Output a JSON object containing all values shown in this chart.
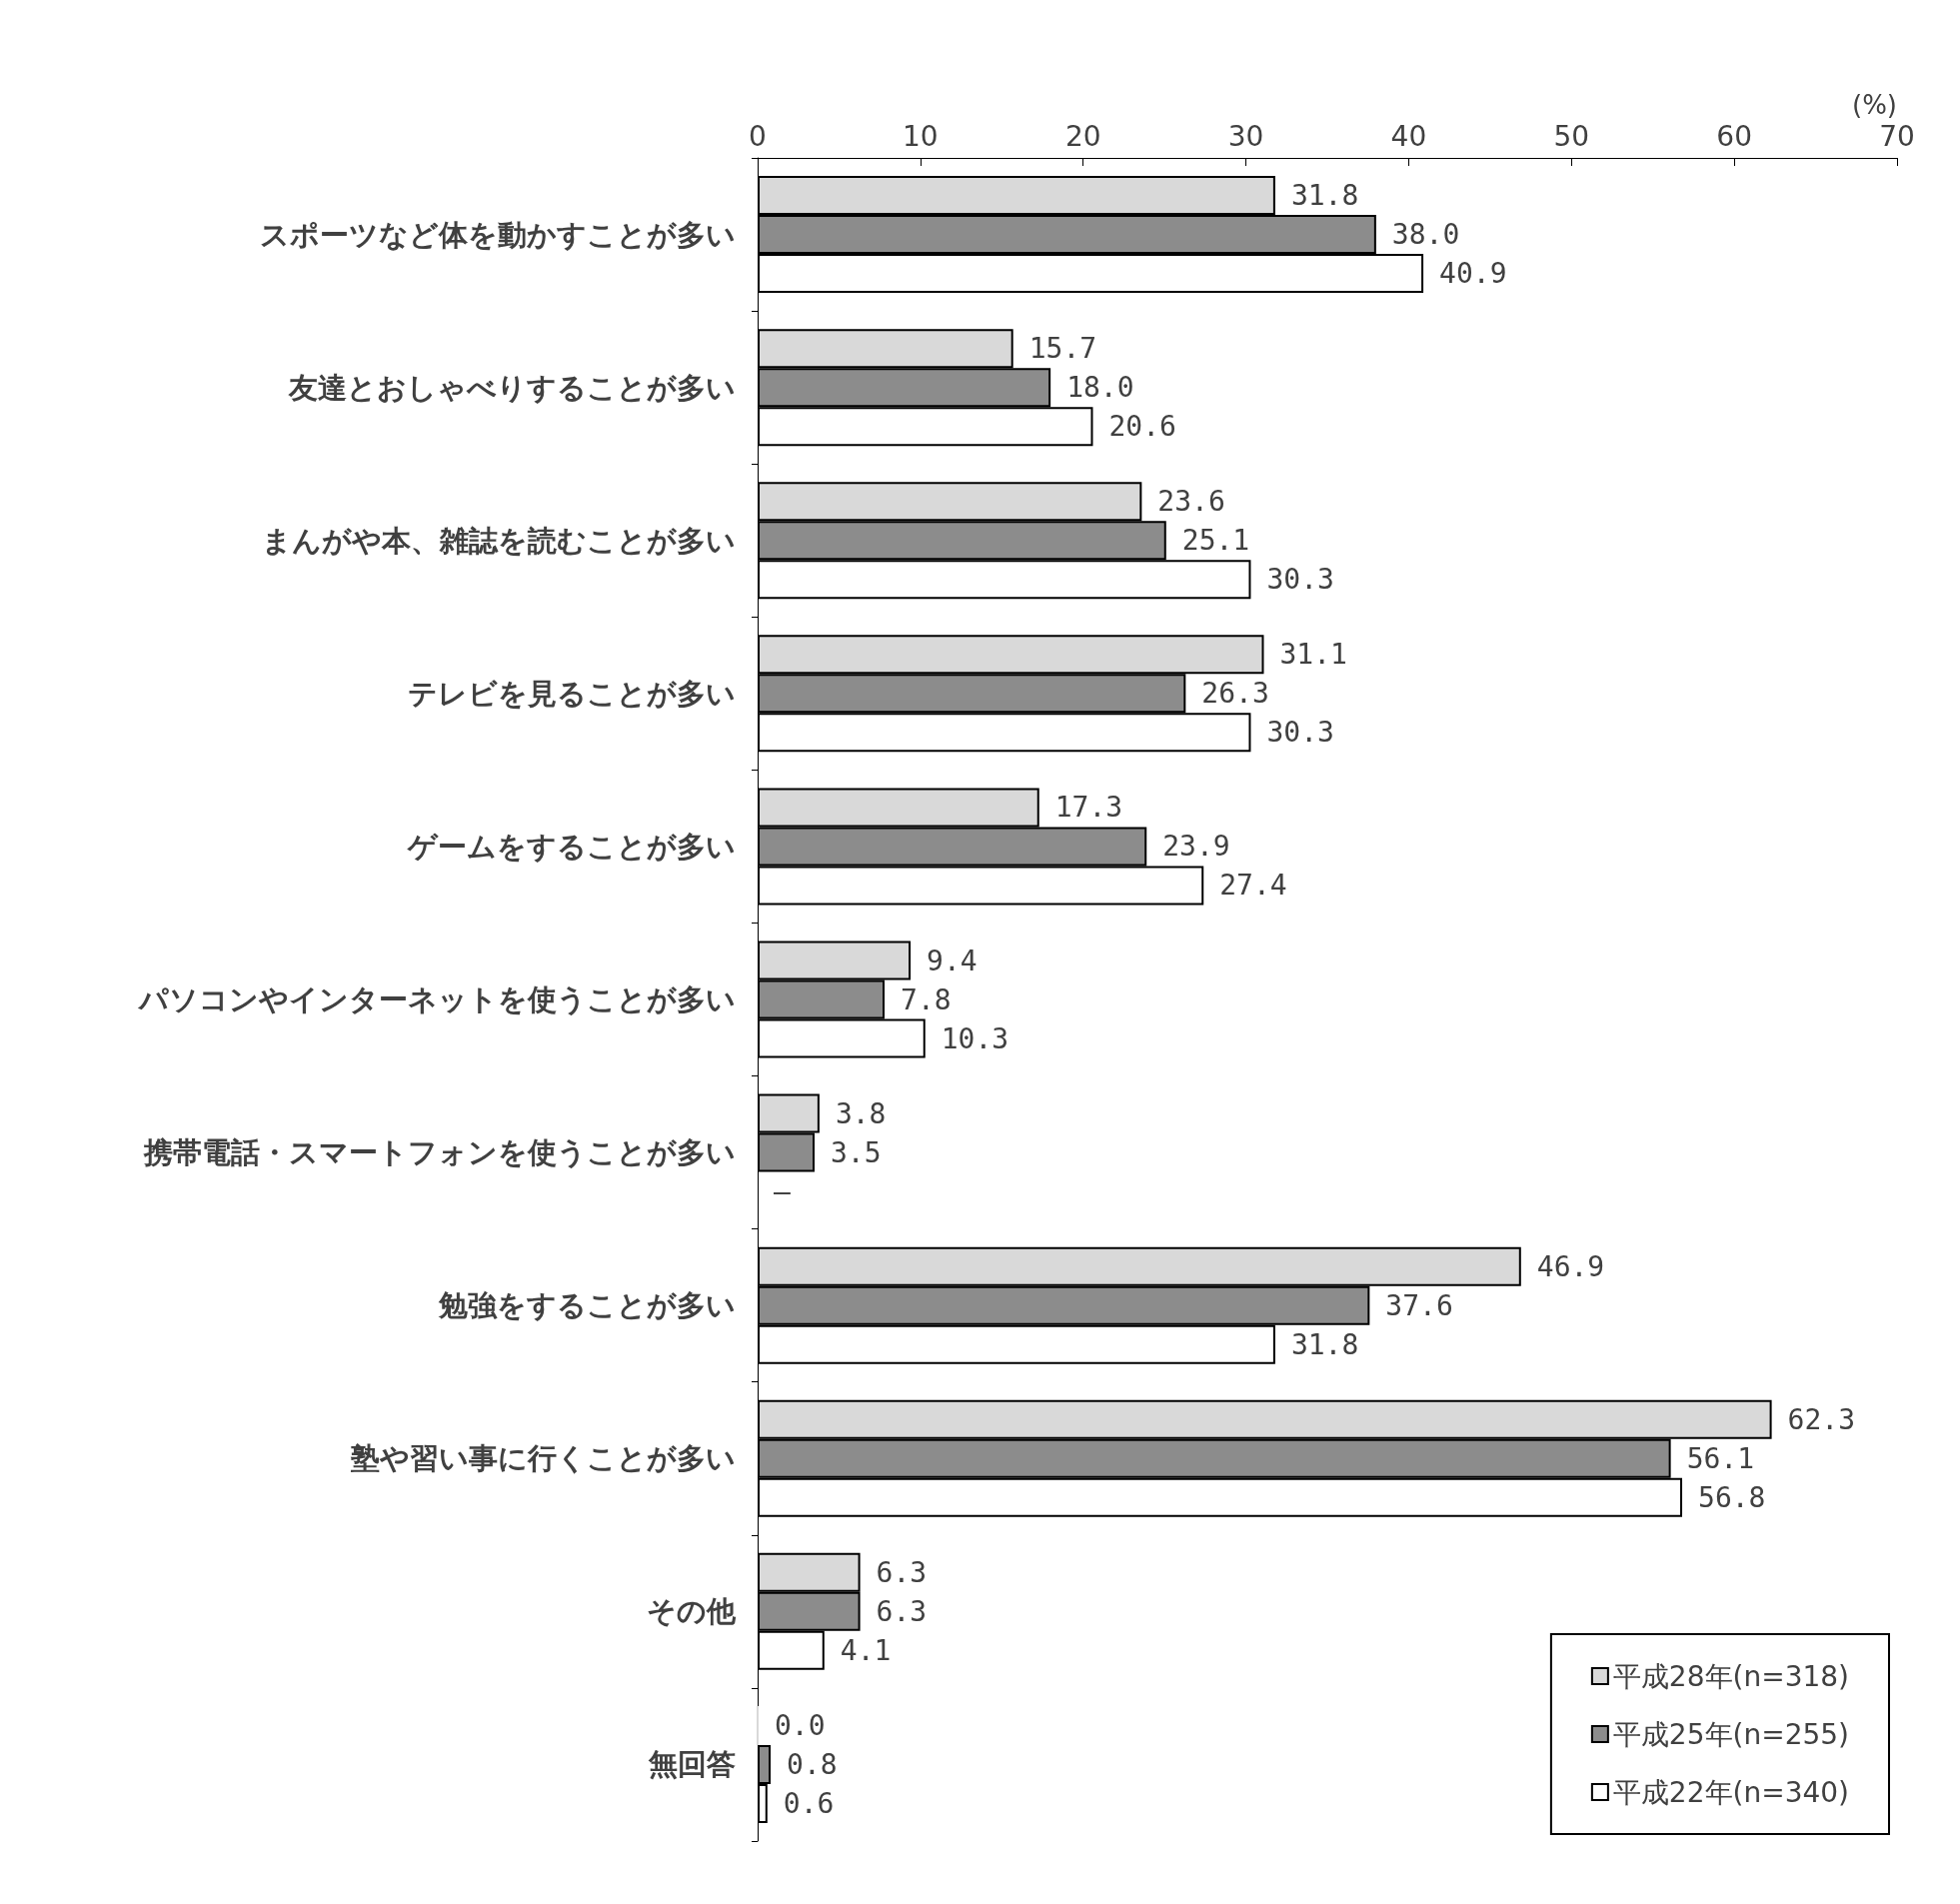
{
  "chart_data": {
    "type": "bar",
    "orientation": "horizontal",
    "xlabel": "(%)",
    "categories": [
      "スポーツなど体を動かすことが多い",
      "友達とおしゃべりすることが多い",
      "まんがや本、雑誌を読むことが多い",
      "テレビを見ることが多い",
      "ゲームをすることが多い",
      "パソコンやインターネットを使うことが多い",
      "携帯電話・スマートフォンを使うことが多い",
      "勉強をすることが多い",
      "塾や習い事に行くことが多い",
      "その他",
      "無回答"
    ],
    "series": [
      {
        "name": "平成28年(n=318)",
        "color": "#d9d9d9",
        "values": [
          31.8,
          15.7,
          23.6,
          31.1,
          17.3,
          9.4,
          3.8,
          46.9,
          62.3,
          6.3,
          0.0
        ],
        "value_labels": [
          "31.8",
          "15.7",
          "23.6",
          "31.1",
          "17.3",
          "9.4",
          "3.8",
          "46.9",
          "62.3",
          "6.3",
          "0.0"
        ]
      },
      {
        "name": "平成25年(n=255)",
        "color": "#8c8c8c",
        "values": [
          38.0,
          18.0,
          25.1,
          26.3,
          23.9,
          7.8,
          3.5,
          37.6,
          56.1,
          6.3,
          0.8
        ],
        "value_labels": [
          "38.0",
          "18.0",
          "25.1",
          "26.3",
          "23.9",
          "7.8",
          "3.5",
          "37.6",
          "56.1",
          "6.3",
          "0.8"
        ]
      },
      {
        "name": "平成22年(n=340)",
        "color": "#ffffff",
        "values": [
          40.9,
          20.6,
          30.3,
          30.3,
          27.4,
          10.3,
          null,
          31.8,
          56.8,
          4.1,
          0.6
        ],
        "value_labels": [
          "40.9",
          "20.6",
          "30.3",
          "30.3",
          "27.4",
          "10.3",
          "—",
          "31.8",
          "56.8",
          "4.1",
          "0.6"
        ]
      }
    ],
    "xlim": [
      0,
      70
    ],
    "xticks": [
      0,
      10,
      20,
      30,
      40,
      50,
      60,
      70
    ],
    "legend": "bottom right"
  }
}
